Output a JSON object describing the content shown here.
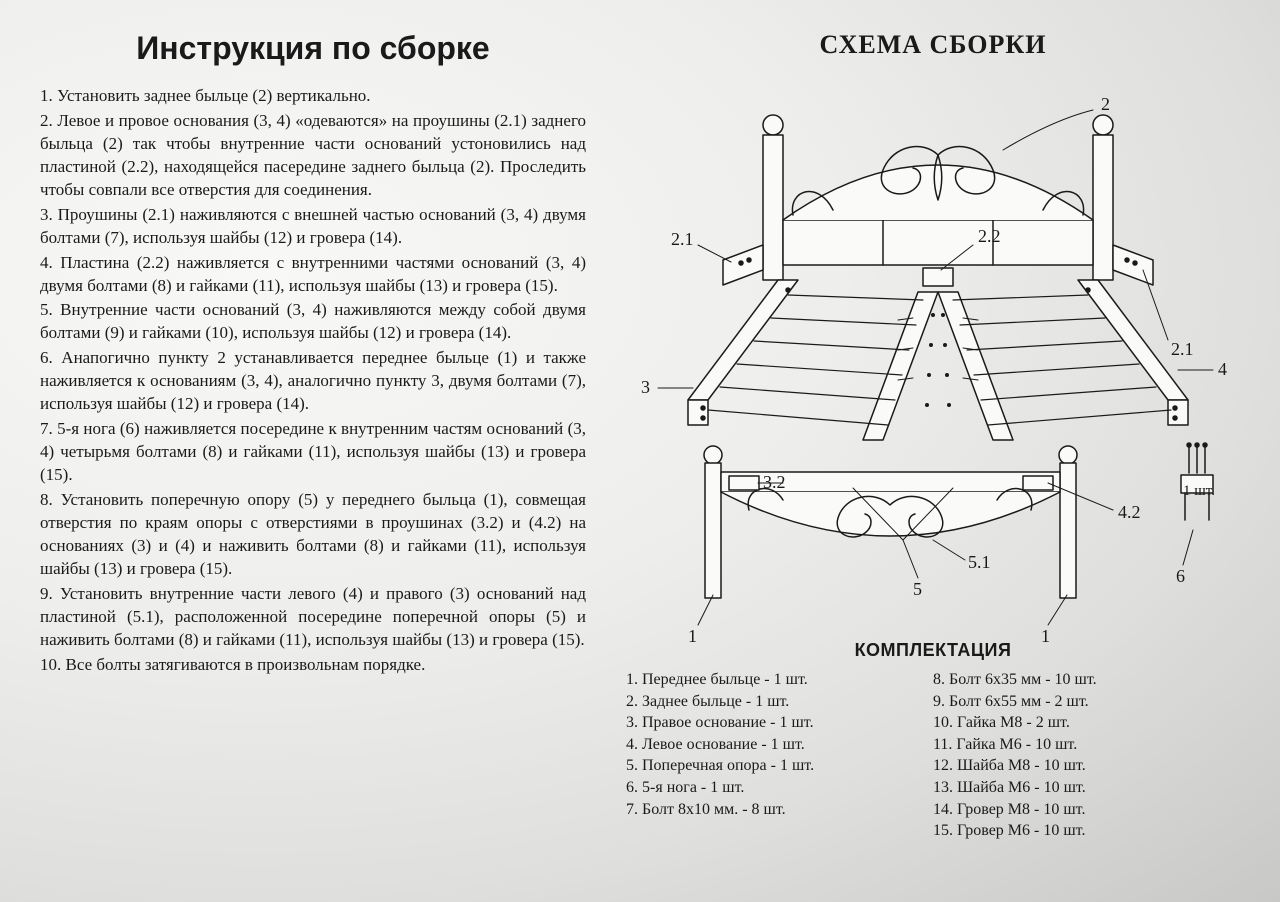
{
  "title": "Инструкция по сборке",
  "scheme_title": "СХЕМА СБОРКИ",
  "parts_title": "КОМПЛЕКТАЦИЯ",
  "instructions": [
    "1. Установить заднее быльце (2) вертикально.",
    "2. Левое и провое основания (3, 4) «одеваются» на проушины (2.1) заднего быльца (2) так чтобы внутренние части оснований устоновились над пластиной (2.2), находящейся пасередине заднего быльца (2). Проследить чтобы совпали все отверстия для соединения.",
    "3. Проушины (2.1) наживляются с внешней частью оснований (3, 4) двумя болтами (7), используя шайбы (12) и гровера (14).",
    "4. Пластина (2.2) наживляется с внутренними частями оснований (3, 4) двумя болтами (8) и гайками (11), используя шайбы (13) и гровера (15).",
    "5. Внутренние части оснований (3, 4) наживляются между собой двумя болтами (9) и гайками (10), используя шайбы (12) и гровера (14).",
    "6. Анапогично пункту 2 устанавливается переднее быльце (1) и также наживляется к основаниям (3, 4), аналогично пункту 3, двумя болтами (7), используя шайбы (12) и гровера (14).",
    "7. 5-я нога (6) наживляется посередине к внутренним частям оснований (3, 4) четырьмя болтами (8) и гайками (11), используя шайбы (13) и гровера (15).",
    "8. Установить поперечную опору (5) у переднего быльца (1), совмещая отверстия по краям опоры с отверстиями в проушинах (3.2) и (4.2) на основаниях (3) и (4) и наживить болтами (8) и гайками (11), используя шайбы (13) и гровера (15).",
    "9. Установить внутренние части левого (4) и правого (3) оснований над пластиной (5.1), расположенной посередине поперечной опоры (5) и наживить болтами (8) и гайками (11), используя шайбы (13) и гровера (15).",
    "10. Все болты затягиваются в произвольнам порядке."
  ],
  "parts_left": [
    "1. Переднее быльце - 1 шт.",
    "2. Заднее быльце - 1 шт.",
    "3. Правое основание - 1 шт.",
    "4. Левое основание - 1 шт.",
    "5. Поперечная опора - 1 шт.",
    "6. 5-я нога - 1 шт.",
    "7. Болт 8х10 мм. - 8 шт."
  ],
  "parts_right": [
    "8. Болт 6х35 мм - 10 шт.",
    "9. Болт 6х55 мм - 2 шт.",
    "10. Гайка М8 - 2 шт.",
    "11. Гайка М6 - 10 шт.",
    "12. Шайба М8 - 10 шт.",
    "13. Шайба М6 - 10 шт.",
    "14. Гровер М8 - 10 шт.",
    "15. Гровер М6 - 10 шт."
  ],
  "diagram": {
    "labels": {
      "l2": "2",
      "l2_1a": "2.1",
      "l2_1b": "2.1",
      "l2_2": "2.2",
      "l3": "3",
      "l4": "4",
      "l3_2": "3.2",
      "l4_2": "4.2",
      "l1a": "1",
      "l1b": "1",
      "l5": "5",
      "l5_1": "5.1",
      "l6": "6",
      "hw_note": "1 шт."
    },
    "colors": {
      "stroke": "#1a1a1a",
      "fill_none": "none",
      "background": "#ffffff00"
    }
  }
}
